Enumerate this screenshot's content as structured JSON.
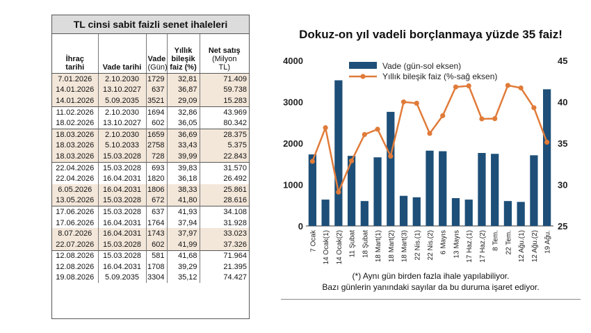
{
  "table": {
    "title": "TL cinsi sabit faizli senet ihaleleri",
    "headers": {
      "ihrac": [
        "İhraç",
        "tarihi"
      ],
      "vade_tarihi": [
        "Vade tarihi"
      ],
      "vade": [
        "Vade",
        "(Gün)"
      ],
      "faiz": [
        "Yıllık",
        "bileşik",
        "faiz (%)"
      ],
      "satis": [
        "Net satış",
        "(Milyon",
        "TL)"
      ]
    },
    "rows": [
      [
        "7.01.2026",
        "2.10.2030",
        "1729",
        "32,81",
        "71.409"
      ],
      [
        "14.01.2026",
        "13.10.2027",
        "637",
        "36,87",
        "59.738"
      ],
      [
        "14.01.2026",
        "5.09.2035",
        "3521",
        "29,09",
        "15.283"
      ],
      [
        "11.02.2026",
        "2.10.2030",
        "1694",
        "32,86",
        "43.969"
      ],
      [
        "18.02.2026",
        "13.10.2027",
        "602",
        "36,05",
        "80.342"
      ],
      [
        "18.03.2026",
        "2.10.2030",
        "1659",
        "36,69",
        "28.375"
      ],
      [
        "18.03.2026",
        "5.10.2033",
        "2758",
        "33,43",
        "5.375"
      ],
      [
        "18.03.2026",
        "15.03.2028",
        "728",
        "39,99",
        "22.843"
      ],
      [
        "22.04.2026",
        "15.03.2028",
        "693",
        "39,83",
        "31.570"
      ],
      [
        "22.04.2026",
        "16.04.2031",
        "1820",
        "36,18",
        "26.492"
      ],
      [
        "6.05.2026",
        "16.04.2031",
        "1806",
        "38,33",
        "25.861"
      ],
      [
        "13.05.2026",
        "15.03.2028",
        "672",
        "41,80",
        "28.616"
      ],
      [
        "17.06.2026",
        "15.03.2028",
        "637",
        "41,93",
        "34.108"
      ],
      [
        "17.06.2026",
        "16.04.2031",
        "1764",
        "37,94",
        "31.928"
      ],
      [
        "8.07.2026",
        "16.04.2031",
        "1743",
        "37,97",
        "33.023"
      ],
      [
        "22.07.2026",
        "15.03.2028",
        "602",
        "41,99",
        "37.326"
      ],
      [
        "12.08.2026",
        "15.03.2028",
        "581",
        "41,68",
        "71.964"
      ],
      [
        "12.08.2026",
        "16.04.2031",
        "1708",
        "39,29",
        "21.395"
      ],
      [
        "19.08.2026",
        "5.09.2035",
        "3304",
        "35,12",
        "74.427"
      ]
    ],
    "band_rows": [
      0,
      1,
      2,
      5,
      6,
      7,
      10,
      11,
      14,
      15
    ],
    "group_starts": [
      3,
      5,
      8,
      12,
      16
    ]
  },
  "chart_data": {
    "type": "bar+line",
    "title": "Dokuz-on yıl vadeli borçlanmaya yüzde 35 faiz!",
    "categories": [
      "7 Ocak",
      "14 Ocak(1)",
      "14 Ocak(2)",
      "11 Şubat",
      "18 Şubat",
      "18 Mart(1)",
      "18 Mart(2)",
      "18 Mart(3)",
      "22 Nis.(1)",
      "22 Nis.(2)",
      "6 Mayıs",
      "13 Mayıs",
      "17 Haz.(1)",
      "17 Haz.(2)",
      "8 Tem.",
      "22 Tem.",
      "12 Ağu.(1)",
      "12 Ağu.(2)",
      "19 Ağu."
    ],
    "series": [
      {
        "name": "Vade (gün-sol eksen)",
        "type": "bar",
        "axis": "left",
        "color": "#1d4f78",
        "values": [
          1729,
          637,
          3521,
          1694,
          602,
          1659,
          2758,
          728,
          693,
          1820,
          1806,
          672,
          637,
          1764,
          1743,
          602,
          581,
          1708,
          3304
        ]
      },
      {
        "name": "Yıllık bileşik faiz (%-sağ eksen)",
        "type": "line",
        "axis": "right",
        "color": "#e07b39",
        "values": [
          32.81,
          36.87,
          29.09,
          32.86,
          36.05,
          36.69,
          33.43,
          39.99,
          39.83,
          36.18,
          38.33,
          41.8,
          41.93,
          37.94,
          37.97,
          41.99,
          41.68,
          39.29,
          35.12
        ]
      }
    ],
    "y_left": {
      "ticks": [
        "0",
        "1000",
        "2000",
        "3000",
        "4000"
      ],
      "min": 0,
      "max": 4000
    },
    "y_right": {
      "ticks": [
        "25",
        "30",
        "35",
        "40",
        "45"
      ],
      "min": 25,
      "max": 45
    },
    "legend_position": "top-left",
    "footnotes": [
      "(*) Aynı gün birden fazla ihale yapılabiliyor.",
      "Bazı günlerin yanındaki sayılar da bu duruma işaret ediyor."
    ]
  }
}
